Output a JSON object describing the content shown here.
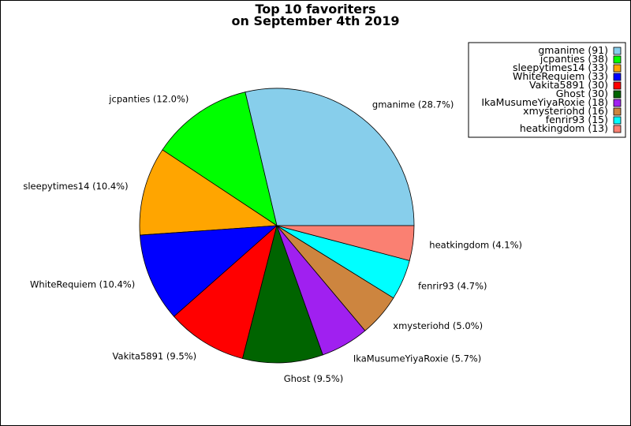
{
  "chart_data": {
    "type": "pie",
    "title": [
      "Top 10 favoriters",
      "on September 4th 2019"
    ],
    "slices": [
      {
        "name": "gmanime",
        "value": 91,
        "percent_label": "gmanime (28.7%)",
        "legend_label": "gmanime (91)",
        "color": "#87CEEB"
      },
      {
        "name": "jcpanties",
        "value": 38,
        "percent_label": "jcpanties (12.0%)",
        "legend_label": "jcpanties (38)",
        "color": "#00FF00"
      },
      {
        "name": "sleepytimes14",
        "value": 33,
        "percent_label": "sleepytimes14 (10.4%)",
        "legend_label": "sleepytimes14 (33)",
        "color": "#FFA500"
      },
      {
        "name": "WhiteRequiem",
        "value": 33,
        "percent_label": "WhiteRequiem (10.4%)",
        "legend_label": "WhiteRequiem (33)",
        "color": "#0000FF"
      },
      {
        "name": "Vakita5891",
        "value": 30,
        "percent_label": "Vakita5891 (9.5%)",
        "legend_label": "Vakita5891 (30)",
        "color": "#FF0000"
      },
      {
        "name": "Ghost",
        "value": 30,
        "percent_label": "Ghost (9.5%)",
        "legend_label": "Ghost (30)",
        "color": "#006400"
      },
      {
        "name": "IkaMusumeYiyaRoxie",
        "value": 18,
        "percent_label": "IkaMusumeYiyaRoxie (5.7%)",
        "legend_label": "IkaMusumeYiyaRoxie (18)",
        "color": "#A020F0"
      },
      {
        "name": "xmysteriohd",
        "value": 16,
        "percent_label": "xmysteriohd (5.0%)",
        "legend_label": "xmysteriohd (16)",
        "color": "#CD853F"
      },
      {
        "name": "fenrir93",
        "value": 15,
        "percent_label": "fenrir93 (4.7%)",
        "legend_label": "fenrir93 (15)",
        "color": "#00FFFF"
      },
      {
        "name": "heatkingdom",
        "value": 13,
        "percent_label": "heatkingdom (4.1%)",
        "legend_label": "heatkingdom (13)",
        "color": "#FA8072"
      }
    ],
    "legend_position": "top-right"
  }
}
